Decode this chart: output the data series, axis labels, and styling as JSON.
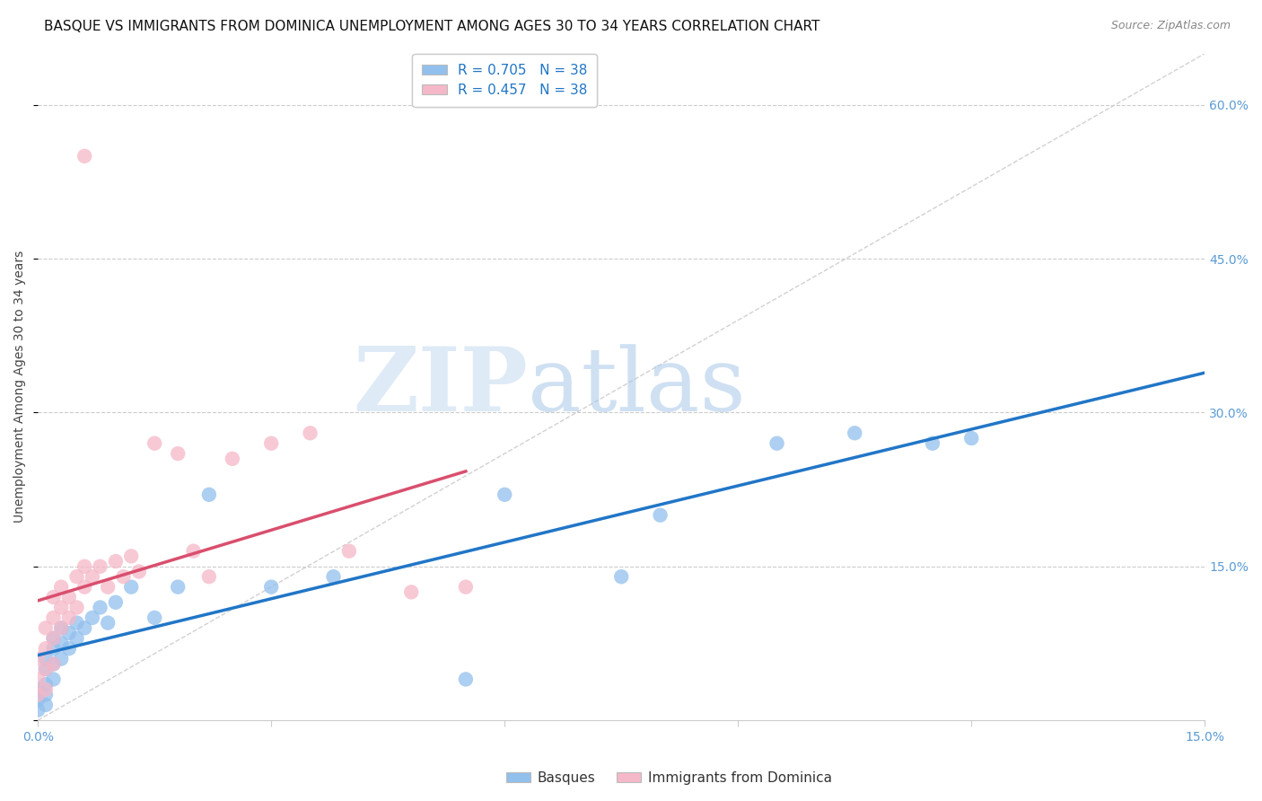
{
  "title": "BASQUE VS IMMIGRANTS FROM DOMINICA UNEMPLOYMENT AMONG AGES 30 TO 34 YEARS CORRELATION CHART",
  "source": "Source: ZipAtlas.com",
  "ylabel": "Unemployment Among Ages 30 to 34 years",
  "xlim": [
    0.0,
    0.15
  ],
  "ylim": [
    0.0,
    0.65
  ],
  "watermark_zip": "ZIP",
  "watermark_atlas": "atlas",
  "legend1_label": "R = 0.705   N = 38",
  "legend2_label": "R = 0.457   N = 38",
  "legend_bottom1": "Basques",
  "legend_bottom2": "Immigrants from Dominica",
  "basque_color": "#92c0ed",
  "dominica_color": "#f5b8c8",
  "basque_line_color": "#2176c7",
  "dominica_line_color": "#d94f6e",
  "diagonal_color": "#cccccc",
  "background_color": "#ffffff",
  "grid_color": "#cccccc",
  "title_fontsize": 11,
  "axis_label_fontsize": 10,
  "tick_fontsize": 10,
  "tick_color": "#5b9bd5",
  "source_fontsize": 9,
  "basque_x": [
    0.0,
    0.0,
    0.0,
    0.001,
    0.001,
    0.001,
    0.001,
    0.001,
    0.002,
    0.002,
    0.002,
    0.002,
    0.003,
    0.003,
    0.003,
    0.004,
    0.004,
    0.005,
    0.005,
    0.006,
    0.007,
    0.008,
    0.009,
    0.01,
    0.012,
    0.015,
    0.018,
    0.022,
    0.03,
    0.038,
    0.055,
    0.06,
    0.075,
    0.08,
    0.095,
    0.105,
    0.115,
    0.12
  ],
  "basque_y": [
    0.02,
    0.01,
    0.03,
    0.015,
    0.025,
    0.035,
    0.05,
    0.06,
    0.04,
    0.055,
    0.07,
    0.08,
    0.06,
    0.075,
    0.09,
    0.07,
    0.085,
    0.08,
    0.095,
    0.09,
    0.1,
    0.11,
    0.095,
    0.115,
    0.13,
    0.1,
    0.13,
    0.22,
    0.13,
    0.14,
    0.04,
    0.22,
    0.14,
    0.2,
    0.27,
    0.28,
    0.27,
    0.275
  ],
  "dominica_x": [
    0.0,
    0.0,
    0.0,
    0.001,
    0.001,
    0.001,
    0.001,
    0.002,
    0.002,
    0.002,
    0.002,
    0.003,
    0.003,
    0.003,
    0.004,
    0.004,
    0.005,
    0.005,
    0.006,
    0.006,
    0.007,
    0.008,
    0.009,
    0.01,
    0.011,
    0.012,
    0.013,
    0.015,
    0.018,
    0.02,
    0.022,
    0.025,
    0.03,
    0.035,
    0.04,
    0.048,
    0.055,
    0.006
  ],
  "dominica_y": [
    0.025,
    0.04,
    0.06,
    0.03,
    0.05,
    0.07,
    0.09,
    0.055,
    0.08,
    0.1,
    0.12,
    0.09,
    0.11,
    0.13,
    0.1,
    0.12,
    0.11,
    0.14,
    0.13,
    0.15,
    0.14,
    0.15,
    0.13,
    0.155,
    0.14,
    0.16,
    0.145,
    0.27,
    0.26,
    0.165,
    0.14,
    0.255,
    0.27,
    0.28,
    0.165,
    0.125,
    0.13,
    0.55
  ]
}
